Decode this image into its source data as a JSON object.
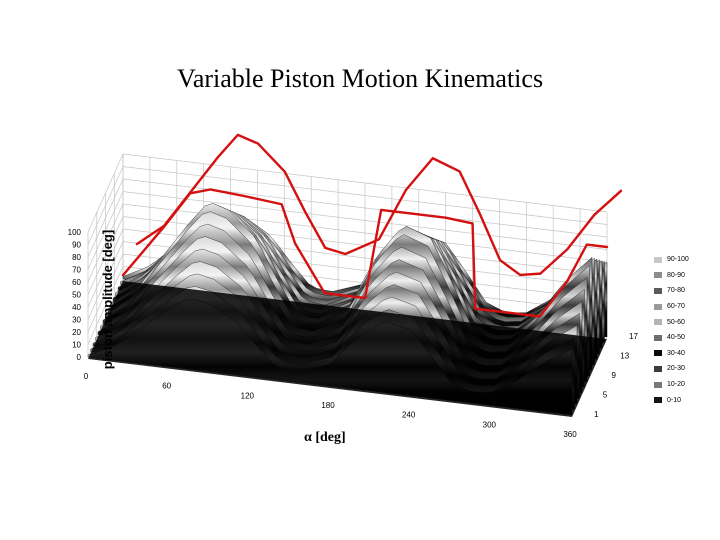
{
  "title": "Variable Piston Motion Kinematics",
  "chart_data": {
    "type": "area",
    "surface": "3d",
    "ylabel": "piston amplitude [deg]",
    "xlabel": "α [deg]",
    "y_ticks": [
      "100",
      "90",
      "80",
      "70",
      "60",
      "50",
      "40",
      "30",
      "20",
      "10",
      "0"
    ],
    "x_ticks": [
      "0",
      "60",
      "120",
      "180",
      "240",
      "300",
      "360"
    ],
    "depth_ticks": [
      "17",
      "13",
      "9",
      "5",
      "1"
    ],
    "ylim": [
      0,
      100
    ],
    "xlim": [
      0,
      360
    ],
    "legend_position": "right",
    "legend": [
      {
        "label": "90-100",
        "color": "#c8c8c8"
      },
      {
        "label": "80-90",
        "color": "#8c8c8c"
      },
      {
        "label": "70-80",
        "color": "#5a5a5a"
      },
      {
        "label": "60-70",
        "color": "#9a9a9a"
      },
      {
        "label": "50-60",
        "color": "#b4b4b4"
      },
      {
        "label": "40-50",
        "color": "#6e6e6e"
      },
      {
        "label": "30-40",
        "color": "#0a0a0a"
      },
      {
        "label": "20-30",
        "color": "#3c3c3c"
      },
      {
        "label": "10-20",
        "color": "#787878"
      },
      {
        "label": "0-10",
        "color": "#141414"
      }
    ],
    "series": [
      {
        "color": "#d41010",
        "x": [
          0,
          20,
          40,
          60,
          75,
          90,
          110,
          125,
          140,
          155,
          180,
          200,
          220,
          240,
          255,
          270,
          285,
          300,
          320,
          340,
          360
        ],
        "values": [
          3,
          20,
          50,
          80,
          100,
          95,
          75,
          45,
          18,
          15,
          30,
          72,
          100,
          92,
          60,
          25,
          15,
          18,
          40,
          70,
          92
        ]
      },
      {
        "color": "#d41010",
        "x": [
          0,
          30,
          50,
          65,
          90,
          118,
          128,
          150,
          180,
          192,
          210,
          240,
          260,
          262,
          290,
          310,
          330,
          345,
          360
        ],
        "values": [
          3,
          45,
          75,
          80,
          78,
          75,
          45,
          8,
          8,
          80,
          80,
          80,
          78,
          10,
          10,
          10,
          40,
          72,
          72
        ]
      }
    ]
  },
  "colors": {
    "line": "#d41010",
    "grid": "#c4c4c4"
  }
}
